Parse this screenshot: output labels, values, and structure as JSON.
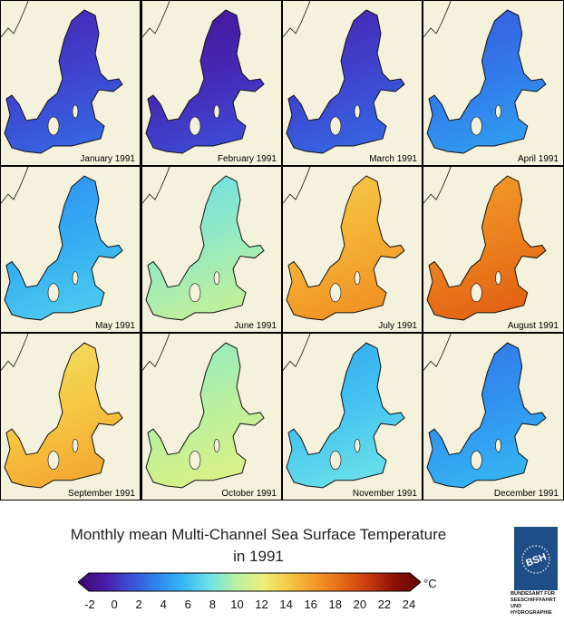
{
  "figure": {
    "title_line1": "Monthly mean Multi-Channel Sea Surface Temperature",
    "title_line2": "in 1991"
  },
  "panels": [
    {
      "label": "January 1991",
      "mean_temp_c": 1.5
    },
    {
      "label": "February 1991",
      "mean_temp_c": 0.5
    },
    {
      "label": "March 1991",
      "mean_temp_c": 1.5
    },
    {
      "label": "April 1991",
      "mean_temp_c": 3.5
    },
    {
      "label": "May 1991",
      "mean_temp_c": 5.5
    },
    {
      "label": "June 1991",
      "mean_temp_c": 9
    },
    {
      "label": "July 1991",
      "mean_temp_c": 15
    },
    {
      "label": "August 1991",
      "mean_temp_c": 17
    },
    {
      "label": "September 1991",
      "mean_temp_c": 14
    },
    {
      "label": "October 1991",
      "mean_temp_c": 10
    },
    {
      "label": "November 1991",
      "mean_temp_c": 6.5
    },
    {
      "label": "December 1991",
      "mean_temp_c": 4.5
    }
  ],
  "colorbar": {
    "min": -2,
    "max": 24,
    "ticks": [
      "-2",
      "0",
      "2",
      "4",
      "6",
      "8",
      "10",
      "12",
      "14",
      "16",
      "18",
      "20",
      "22",
      "24"
    ],
    "unit": "°C",
    "colors": [
      "#3a0a6e",
      "#4a1aa6",
      "#3b4fd8",
      "#2f86ee",
      "#35b8f2",
      "#6fe2e8",
      "#b8f0a0",
      "#ecf07a",
      "#f6c845",
      "#f29a28",
      "#e66a16",
      "#c93a10",
      "#8e1006",
      "#5e0a02"
    ]
  },
  "colors": {
    "land": "#f4f1dc",
    "coast": "#111111"
  },
  "logo": {
    "lines": [
      "BUNDESAMT FÜR",
      "SEESCHIFFFAHRT",
      "UND",
      "HYDROGRAPHIE"
    ],
    "mark": "BSH"
  }
}
